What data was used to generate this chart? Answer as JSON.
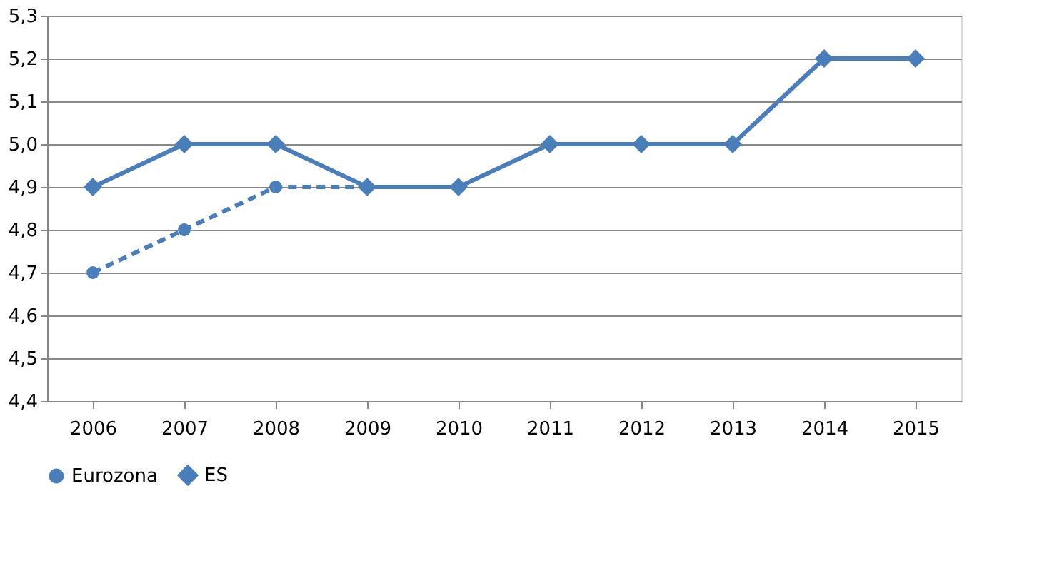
{
  "chart_data": {
    "type": "line",
    "categories": [
      "2006",
      "2007",
      "2008",
      "2009",
      "2010",
      "2011",
      "2012",
      "2013",
      "2014",
      "2015"
    ],
    "series": [
      {
        "name": "Eurozona",
        "color": "#4a7ebb",
        "line_style": "dashed",
        "marker": "circle",
        "values": [
          4.7,
          4.8,
          4.9,
          4.9,
          null,
          null,
          null,
          null,
          null,
          null
        ]
      },
      {
        "name": "ES",
        "color": "#4a7ebb",
        "line_style": "solid",
        "marker": "diamond",
        "values": [
          4.9,
          5.0,
          5.0,
          4.9,
          4.9,
          5.0,
          5.0,
          5.0,
          5.2,
          5.2
        ]
      }
    ],
    "ylim": [
      4.4,
      5.3
    ],
    "yticks": [
      {
        "value": 4.4,
        "label": "4,4"
      },
      {
        "value": 4.5,
        "label": "4,5"
      },
      {
        "value": 4.6,
        "label": "4,6"
      },
      {
        "value": 4.7,
        "label": "4,7"
      },
      {
        "value": 4.8,
        "label": "4,8"
      },
      {
        "value": 4.9,
        "label": "4,9"
      },
      {
        "value": 5.0,
        "label": "5,0"
      },
      {
        "value": 5.1,
        "label": "5,1"
      },
      {
        "value": 5.2,
        "label": "5,2"
      },
      {
        "value": 5.3,
        "label": "5,3"
      }
    ],
    "grid": "y",
    "legend": "bottom"
  }
}
